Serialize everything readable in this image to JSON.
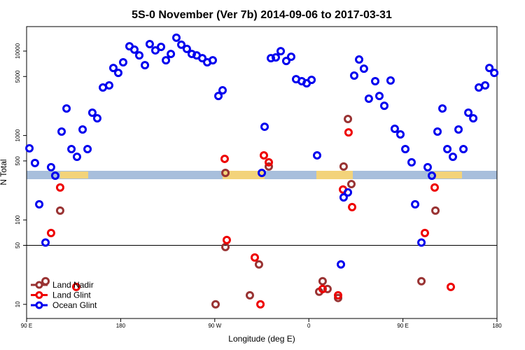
{
  "chart_data": {
    "type": "scatter",
    "title": "5S-0 November (Ver 7b)   2014-09-06 to 2017-03-31",
    "x_label": "Longitude (deg E)",
    "y_label": "N Total",
    "xlim": [
      90,
      540
    ],
    "xticks": [
      {
        "value": 90,
        "label": "90 E"
      },
      {
        "value": 180,
        "label": "180"
      },
      {
        "value": 270,
        "label": "90 W"
      },
      {
        "value": 360,
        "label": "0"
      },
      {
        "value": 450,
        "label": "90 E"
      },
      {
        "value": 540,
        "label": "180"
      }
    ],
    "ylim": [
      6.8,
      19500
    ],
    "y_scale": "log",
    "yticks": [
      10,
      50,
      100,
      500,
      1000,
      5000,
      10000
    ],
    "hline": 50,
    "legend": "bottom-left",
    "series": [
      {
        "name": "Land Nadir",
        "color": "#993333",
        "x": [
          108.1,
          122.1,
          270.8,
          280.2,
          280.2,
          303.6,
          312.3,
          321.7,
          369.9,
          373.2,
          377.9,
          388.0,
          393.3,
          397.4,
          400.7,
          467.7,
          481.1
        ],
        "values": [
          18.8,
          129,
          10,
          361,
          47.8,
          12.8,
          29.7,
          429,
          14.1,
          18.8,
          15.2,
          11.9,
          429,
          1570,
          266,
          18.8,
          129
        ]
      },
      {
        "name": "Land Glint",
        "color": "#ee0000",
        "x": [
          113.4,
          122.1,
          137.5,
          279.5,
          281.5,
          308.3,
          313.7,
          317.0,
          321.7,
          373.2,
          388.0,
          392.7,
          398.0,
          401.4,
          471.0,
          480.4,
          495.8
        ],
        "values": [
          70,
          242,
          16.1,
          529,
          57.8,
          35.9,
          10,
          582,
          481,
          15.2,
          12.8,
          229,
          1090,
          142,
          70,
          242,
          16.1
        ]
      },
      {
        "name": "Ocean Glint",
        "color": "#0000ee",
        "x": [
          92.7,
          98.0,
          102.1,
          108.1,
          113.4,
          117.4,
          123.5,
          128.2,
          132.9,
          138.2,
          143.6,
          148.3,
          152.9,
          157.6,
          163.0,
          169.0,
          173.0,
          177.7,
          182.4,
          188.4,
          193.1,
          197.8,
          203.2,
          207.8,
          213.2,
          218.6,
          223.3,
          228.0,
          233.3,
          238.0,
          243.3,
          248.0,
          252.7,
          258.1,
          262.8,
          268.1,
          273.5,
          277.5,
          315.0,
          317.7,
          323.7,
          328.4,
          333.1,
          338.4,
          343.1,
          347.8,
          353.2,
          357.9,
          362.6,
          367.9,
          390.7,
          393.3,
          397.4,
          403.4,
          408.1,
          412.7,
          417.4,
          423.5,
          427.5,
          432.2,
          438.2,
          442.2,
          447.6,
          452.3,
          458.3,
          461.7,
          467.7,
          473.7,
          477.7,
          483.1,
          487.8,
          492.5,
          497.8,
          503.2,
          507.9,
          512.6,
          517.3,
          522.6,
          528.7,
          532.7,
          537.4
        ],
        "values": [
          705,
          472,
          153,
          54,
          421,
          334,
          1112,
          2089,
          691,
          560,
          1178,
          691,
          1862,
          1600,
          3700,
          3920,
          6310,
          5520,
          7360,
          11400,
          10400,
          8900,
          6810,
          12100,
          10200,
          11200,
          7780,
          9250,
          14400,
          11900,
          10600,
          9250,
          8900,
          8240,
          7360,
          7780,
          2940,
          3430,
          361,
          1270,
          8240,
          8410,
          9980,
          7640,
          8570,
          4650,
          4400,
          4150,
          4560,
          582,
          29.7,
          185,
          212,
          5120,
          7940,
          6190,
          2730,
          4400,
          2940,
          2250,
          4480,
          1200,
          1030,
          691,
          481,
          153,
          54,
          421,
          334,
          1112,
          2089,
          691,
          560,
          1178,
          691,
          1862,
          1600,
          3700,
          3920,
          6310,
          5520
        ]
      }
    ]
  }
}
